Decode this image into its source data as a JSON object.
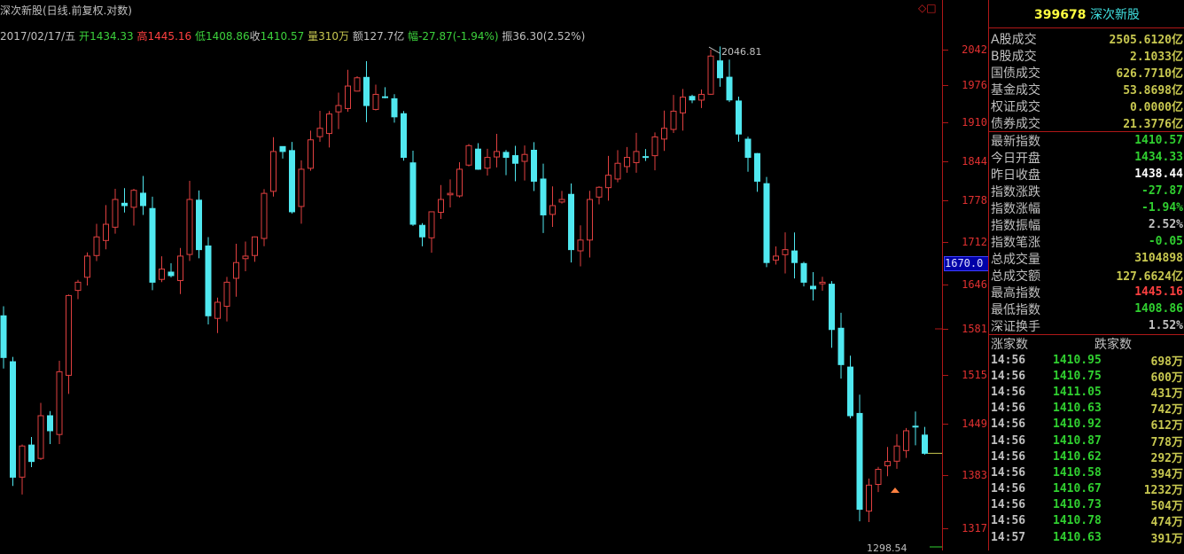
{
  "header": {
    "title": "深次新股(日线.前复权.对数)",
    "date": "2017/02/17/五",
    "open_label": "开",
    "open": "1434.33",
    "high_label": "高",
    "high": "1445.16",
    "low_label": "低",
    "low": "1408.86",
    "close_label": "收",
    "close": "1410.57",
    "vol_label": "量",
    "vol": "310万",
    "amt_label": "额",
    "amt": "127.7亿",
    "chg_label": "幅",
    "chg": "-27.87(-1.94%)",
    "amp_label": "振",
    "amp": "36.30(2.52%)"
  },
  "corner_icons": {
    "diamond": "◇",
    "square": "□"
  },
  "axis": {
    "ticks": [
      "2042",
      "1976",
      "1910",
      "1844",
      "1778",
      "1712",
      "1646",
      "1581",
      "1515",
      "1449",
      "1383",
      "1317"
    ],
    "crosshair_value": "1670.0"
  },
  "annotations": {
    "max": "2046.81",
    "min": "1298.54"
  },
  "colors": {
    "up": "#e04040",
    "down": "#50e8f0",
    "axis": "#b01818",
    "bg": "#000000"
  },
  "chart_data": {
    "type": "candlestick",
    "scale": "log",
    "ylim": [
      1290,
      2060
    ],
    "closes": [
      1540,
      1380,
      1420,
      1400,
      1460,
      1440,
      1520,
      1630,
      1650,
      1690,
      1720,
      1740,
      1780,
      1770,
      1795,
      1770,
      1650,
      1670,
      1660,
      1690,
      1780,
      1700,
      1600,
      1620,
      1650,
      1680,
      1690,
      1720,
      1790,
      1860,
      1860,
      1760,
      1830,
      1880,
      1900,
      1925,
      1940,
      1975,
      1990,
      1940,
      1960,
      1955,
      1920,
      1850,
      1740,
      1720,
      1760,
      1780,
      1790,
      1830,
      1870,
      1830,
      1850,
      1860,
      1850,
      1840,
      1855,
      1810,
      1755,
      1770,
      1780,
      1700,
      1715,
      1780,
      1800,
      1820,
      1840,
      1850,
      1860,
      1850,
      1885,
      1900,
      1930,
      1955,
      1950,
      1960,
      2030,
      1990,
      1950,
      1890,
      1850,
      1810,
      1680,
      1690,
      1700,
      1680,
      1650,
      1640,
      1650,
      1580,
      1530,
      1460,
      1340,
      1370,
      1390,
      1400,
      1420,
      1440,
      1445,
      1410.57
    ],
    "last": {
      "open": 1434.33,
      "high": 1445.16,
      "low": 1408.86,
      "close": 1410.57
    }
  },
  "panel": {
    "code": "399678",
    "name": "深次新股",
    "market": [
      {
        "label": "A股成交",
        "value": "2505.6120亿"
      },
      {
        "label": "B股成交",
        "value": "2.1033亿"
      },
      {
        "label": "国债成交",
        "value": "626.7710亿"
      },
      {
        "label": "基金成交",
        "value": "53.8698亿"
      },
      {
        "label": "权证成交",
        "value": "0.0000亿"
      },
      {
        "label": "债券成交",
        "value": "21.3776亿"
      }
    ],
    "stats": [
      {
        "label": "最新指数",
        "value": "1410.57",
        "color": "#30d030"
      },
      {
        "label": "今日开盘",
        "value": "1434.33",
        "color": "#30d030"
      },
      {
        "label": "昨日收盘",
        "value": "1438.44",
        "color": "#ffffff"
      },
      {
        "label": "指数涨跌",
        "value": "-27.87",
        "color": "#30d030"
      },
      {
        "label": "指数涨幅",
        "value": "-1.94%",
        "color": "#30d030"
      },
      {
        "label": "指数振幅",
        "value": "2.52%",
        "color": "#c0c0c0"
      },
      {
        "label": "指数笔涨",
        "value": "-0.05",
        "color": "#30d030"
      },
      {
        "label": "总成交量",
        "value": "3104898",
        "color": "#c8c850"
      },
      {
        "label": "总成交额",
        "value": "127.6624亿",
        "color": "#c8c850"
      },
      {
        "label": "最高指数",
        "value": "1445.16",
        "color": "#ff4040"
      },
      {
        "label": "最低指数",
        "value": "1408.86",
        "color": "#30d030"
      },
      {
        "label": "深证换手",
        "value": "1.52%",
        "color": "#c0c0c0"
      }
    ],
    "breadth": {
      "up_label": "涨家数",
      "down_label": "跌家数"
    },
    "ticks": [
      {
        "time": "14:56",
        "price": "1410.95",
        "vol": "698万"
      },
      {
        "time": "14:56",
        "price": "1410.75",
        "vol": "600万"
      },
      {
        "time": "14:56",
        "price": "1411.05",
        "vol": "431万"
      },
      {
        "time": "14:56",
        "price": "1410.63",
        "vol": "742万"
      },
      {
        "time": "14:56",
        "price": "1410.92",
        "vol": "612万"
      },
      {
        "time": "14:56",
        "price": "1410.87",
        "vol": "778万"
      },
      {
        "time": "14:56",
        "price": "1410.62",
        "vol": "292万"
      },
      {
        "time": "14:56",
        "price": "1410.58",
        "vol": "394万"
      },
      {
        "time": "14:56",
        "price": "1410.67",
        "vol": "1232万"
      },
      {
        "time": "14:56",
        "price": "1410.73",
        "vol": "504万"
      },
      {
        "time": "14:56",
        "price": "1410.78",
        "vol": "474万"
      },
      {
        "time": "14:57",
        "price": "1410.63",
        "vol": "391万"
      }
    ]
  }
}
